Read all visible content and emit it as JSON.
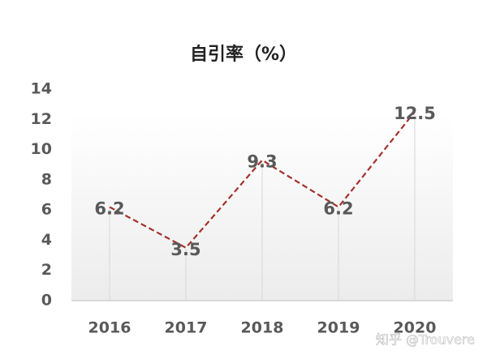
{
  "chart_data": {
    "type": "line",
    "title": "自引率（%）",
    "categories": [
      "2016",
      "2017",
      "2018",
      "2019",
      "2020"
    ],
    "values": [
      6.2,
      3.5,
      9.3,
      6.2,
      12.5
    ],
    "color": "#a3312b",
    "ylim": [
      0,
      14
    ],
    "yticks": [
      0,
      2,
      4,
      6,
      8,
      10,
      12,
      14
    ],
    "drop_lines": true,
    "watermark": "知乎 @Trouvere"
  }
}
